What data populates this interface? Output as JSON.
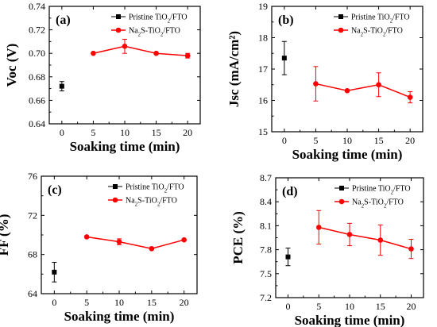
{
  "colors": {
    "pristine": "#000000",
    "treated": "#ff0000"
  },
  "legend": {
    "pristine": {
      "prefix": "Pristine TiO",
      "sub": "2",
      "suffix": "/FTO"
    },
    "treated": {
      "prefix": "Na",
      "sub": "2",
      "mid": "S-TiO",
      "sub2": "2",
      "suffix": "/FTO"
    }
  },
  "chart_data": [
    {
      "type": "scatter",
      "panel_label": "(a)",
      "ylabel": "Voc (V)",
      "xlabel": "Soaking time (min)",
      "xlim": [
        -2,
        22
      ],
      "ylim": [
        0.64,
        0.74
      ],
      "xticks": [
        0,
        5,
        10,
        15,
        20
      ],
      "yticks": [
        "0.64",
        "0.66",
        "0.68",
        "0.70",
        "0.72",
        "0.74"
      ],
      "legend_position": "top-right",
      "series": [
        {
          "name": "Pristine TiO2/FTO",
          "color_key": "pristine",
          "marker": "square",
          "connected": false,
          "x": [
            0
          ],
          "y": [
            0.672
          ],
          "err": [
            0.004
          ]
        },
        {
          "name": "Na2S-TiO2/FTO",
          "color_key": "treated",
          "marker": "circle",
          "connected": true,
          "x": [
            5,
            10,
            15,
            20
          ],
          "y": [
            0.7,
            0.706,
            0.7,
            0.698
          ],
          "err": [
            0.0,
            0.006,
            0.0,
            0.002
          ]
        }
      ]
    },
    {
      "type": "scatter",
      "panel_label": "(b)",
      "ylabel": "Jsc (mA/cm²)",
      "xlabel": "Soaking time (min)",
      "xlim": [
        -2,
        22
      ],
      "ylim": [
        15,
        19
      ],
      "xticks": [
        0,
        5,
        10,
        15,
        20
      ],
      "yticks": [
        "15",
        "16",
        "17",
        "18",
        "19"
      ],
      "legend_position": "top-right",
      "series": [
        {
          "name": "Pristine TiO2/FTO",
          "color_key": "pristine",
          "marker": "square",
          "connected": false,
          "x": [
            0
          ],
          "y": [
            17.35
          ],
          "err": [
            0.53
          ]
        },
        {
          "name": "Na2S-TiO2/FTO",
          "color_key": "treated",
          "marker": "circle",
          "connected": true,
          "x": [
            5,
            10,
            15,
            20
          ],
          "y": [
            16.53,
            16.31,
            16.5,
            16.1
          ],
          "err": [
            0.55,
            0.0,
            0.38,
            0.18
          ]
        }
      ]
    },
    {
      "type": "scatter",
      "panel_label": "(c)",
      "ylabel": "FF (%)",
      "xlabel": "Soaking time (min)",
      "xlim": [
        -2,
        22
      ],
      "ylim": [
        64,
        76
      ],
      "xticks": [
        0,
        5,
        10,
        15,
        20
      ],
      "yticks": [
        "64",
        "68",
        "72",
        "76"
      ],
      "legend_position": "top-right",
      "series": [
        {
          "name": "Pristine TiO2/FTO",
          "color_key": "pristine",
          "marker": "square",
          "connected": false,
          "x": [
            0
          ],
          "y": [
            66.2
          ],
          "err": [
            1.0
          ]
        },
        {
          "name": "Na2S-TiO2/FTO",
          "color_key": "treated",
          "marker": "circle",
          "connected": true,
          "x": [
            5,
            10,
            15,
            20
          ],
          "y": [
            69.8,
            69.3,
            68.6,
            69.5
          ],
          "err": [
            0.0,
            0.3,
            0.0,
            0.0
          ]
        }
      ]
    },
    {
      "type": "scatter",
      "panel_label": "(d)",
      "ylabel": "PCE (%)",
      "xlabel": "Soaking time (min)",
      "xlim": [
        -2,
        22
      ],
      "ylim": [
        7.2,
        8.7
      ],
      "xticks": [
        0,
        5,
        10,
        15,
        20
      ],
      "yticks": [
        "7.2",
        "7.5",
        "7.8",
        "8.1",
        "8.4",
        "8.7"
      ],
      "legend_position": "top-right",
      "series": [
        {
          "name": "Pristine TiO2/FTO",
          "color_key": "pristine",
          "marker": "square",
          "connected": false,
          "x": [
            0
          ],
          "y": [
            7.71
          ],
          "err": [
            0.11
          ]
        },
        {
          "name": "Na2S-TiO2/FTO",
          "color_key": "treated",
          "marker": "circle",
          "connected": true,
          "x": [
            5,
            10,
            15,
            20
          ],
          "y": [
            8.08,
            7.99,
            7.92,
            7.81
          ],
          "err": [
            0.21,
            0.14,
            0.19,
            0.12
          ]
        }
      ]
    }
  ]
}
